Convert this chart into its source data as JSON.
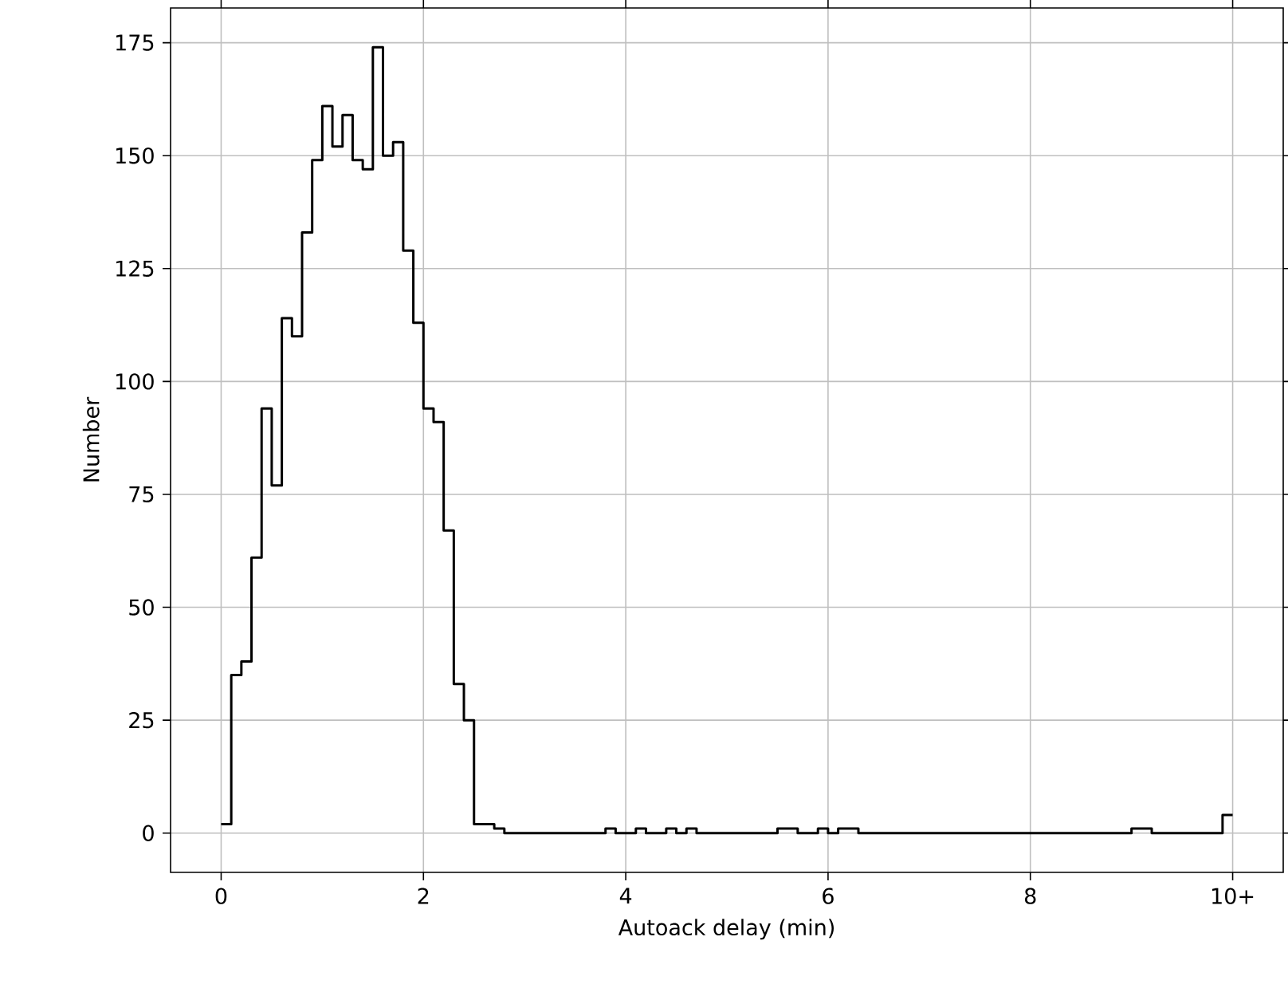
{
  "chart_data": {
    "type": "histogram",
    "xlabel": "Autoack delay (min)",
    "ylabel": "Number",
    "color": "#000000",
    "bins": [
      0,
      0.1,
      0.2,
      0.3,
      0.4,
      0.5,
      0.6,
      0.7,
      0.8,
      0.9,
      1,
      1.1,
      1.2,
      1.3,
      1.4,
      1.5,
      1.6,
      1.7,
      1.8,
      1.9,
      2,
      2.1,
      2.2,
      2.3,
      2.4,
      2.5,
      2.6,
      2.7,
      2.8,
      2.9,
      3,
      3.1,
      3.2,
      3.3,
      3.4,
      3.5,
      3.6,
      3.7,
      3.8,
      3.9,
      4,
      4.1,
      4.2,
      4.3,
      4.4,
      4.5,
      4.6,
      4.7,
      4.8,
      4.9,
      5,
      5.1,
      5.2,
      5.3,
      5.4,
      5.5,
      5.6,
      5.7,
      5.8,
      5.9,
      6,
      6.1,
      6.2,
      6.3,
      6.4,
      6.5,
      6.6,
      6.7,
      6.8,
      6.9,
      7,
      7.1,
      7.2,
      7.3,
      7.4,
      7.5,
      7.6,
      7.7,
      7.8,
      7.9,
      8,
      8.1,
      8.2,
      8.3,
      8.4,
      8.5,
      8.6,
      8.7,
      8.8,
      8.9,
      9,
      9.1,
      9.2,
      9.3,
      9.4,
      9.5,
      9.6,
      9.7,
      9.8,
      9.9,
      10
    ],
    "values": [
      2,
      35,
      38,
      61,
      94,
      77,
      114,
      110,
      133,
      149,
      161,
      152,
      159,
      149,
      147,
      174,
      150,
      153,
      129,
      113,
      94,
      91,
      67,
      33,
      25,
      2,
      2,
      1,
      0,
      0,
      0,
      0,
      0,
      0,
      0,
      0,
      0,
      0,
      1,
      0,
      0,
      1,
      0,
      0,
      1,
      0,
      1,
      0,
      0,
      0,
      0,
      0,
      0,
      0,
      0,
      1,
      1,
      0,
      0,
      1,
      0,
      1,
      1,
      0,
      0,
      0,
      0,
      0,
      0,
      0,
      0,
      0,
      0,
      0,
      0,
      0,
      0,
      0,
      0,
      0,
      0,
      0,
      0,
      0,
      0,
      0,
      0,
      0,
      0,
      0,
      1,
      1,
      0,
      0,
      0,
      0,
      0,
      0,
      0,
      4
    ],
    "xlim": [
      -0.5,
      10.5
    ],
    "ylim": [
      -8.7,
      182.7
    ],
    "xticks": [
      0,
      2,
      4,
      6,
      8,
      {
        "value": 10,
        "label": "10+"
      }
    ],
    "yticks": [
      0,
      25,
      50,
      75,
      100,
      125,
      150,
      175
    ],
    "grid": true
  }
}
